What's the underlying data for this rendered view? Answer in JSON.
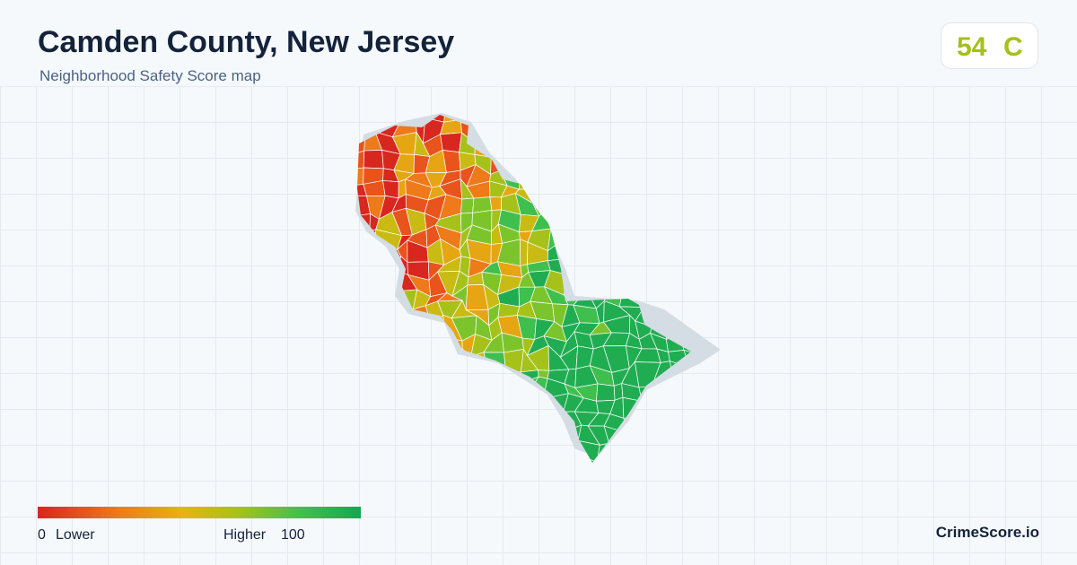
{
  "header": {
    "title": "Camden County, New Jersey",
    "subtitle": "Neighborhood Safety Score map"
  },
  "score": {
    "value": "54",
    "grade": "C"
  },
  "legend": {
    "min": "0",
    "low_label": "Lower",
    "high_label": "Higher",
    "max": "100"
  },
  "footer": {
    "brand": "CrimeScore.io"
  }
}
